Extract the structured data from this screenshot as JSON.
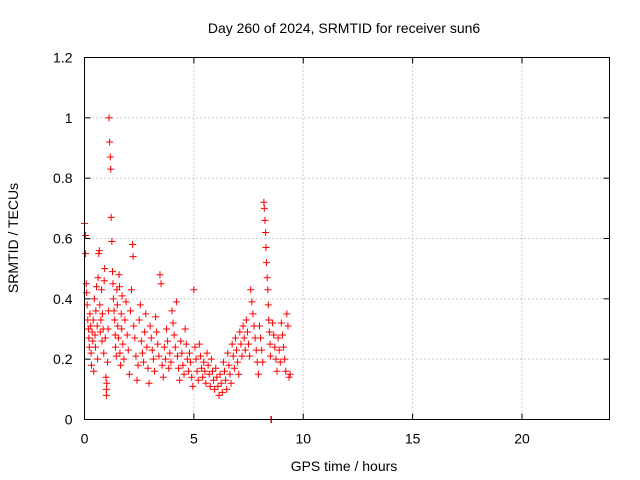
{
  "chart_data": {
    "type": "scatter",
    "title": "Day 260 of 2024, SRMTID for receiver sun6",
    "xlabel": "GPS time / hours",
    "ylabel": "SRMTID / TECUs",
    "xlim": [
      0,
      24
    ],
    "ylim": [
      0,
      1.2
    ],
    "xticks": [
      "0",
      "5",
      "10",
      "15",
      "20"
    ],
    "xtick_values": [
      0,
      5,
      10,
      15,
      20
    ],
    "yticks": [
      "0",
      "0.2",
      "0.4",
      "0.6",
      "0.8",
      "1",
      "1.2"
    ],
    "ytick_values": [
      0,
      0.2,
      0.4,
      0.6,
      0.8,
      1.0,
      1.2
    ],
    "grid": true,
    "marker": "plus",
    "marker_color": "#ff0000",
    "series": [
      {
        "points": [
          [
            0.0,
            0.65
          ],
          [
            0.05,
            0.61
          ],
          [
            0.05,
            0.55
          ],
          [
            0.08,
            0.45
          ],
          [
            0.1,
            0.42
          ],
          [
            0.12,
            0.38
          ],
          [
            0.15,
            0.33
          ],
          [
            0.18,
            0.3
          ],
          [
            0.2,
            0.27
          ],
          [
            0.22,
            0.24
          ],
          [
            0.25,
            0.35
          ],
          [
            0.28,
            0.31
          ],
          [
            0.3,
            0.22
          ],
          [
            0.32,
            0.18
          ],
          [
            0.35,
            0.29
          ],
          [
            0.38,
            0.26
          ],
          [
            0.4,
            0.33
          ],
          [
            0.42,
            0.16
          ],
          [
            0.45,
            0.4
          ],
          [
            0.48,
            0.28
          ],
          [
            0.5,
            0.24
          ],
          [
            0.52,
            0.36
          ],
          [
            0.55,
            0.44
          ],
          [
            0.58,
            0.31
          ],
          [
            0.6,
            0.2
          ],
          [
            0.62,
            0.47
          ],
          [
            0.65,
            0.55
          ],
          [
            0.68,
            0.56
          ],
          [
            0.7,
            0.38
          ],
          [
            0.72,
            0.29
          ],
          [
            0.75,
            0.33
          ],
          [
            0.78,
            0.43
          ],
          [
            0.8,
            0.26
          ],
          [
            0.82,
            0.35
          ],
          [
            0.85,
            0.3
          ],
          [
            0.88,
            0.22
          ],
          [
            0.9,
            0.46
          ],
          [
            0.92,
            0.5
          ],
          [
            0.95,
            0.27
          ],
          [
            0.98,
            0.14
          ],
          [
            1.0,
            0.1
          ],
          [
            1.0,
            0.08
          ],
          [
            1.02,
            0.12
          ],
          [
            1.05,
            0.19
          ],
          [
            1.08,
            0.3
          ],
          [
            1.1,
            0.36
          ],
          [
            1.12,
            1.0
          ],
          [
            1.15,
            0.92
          ],
          [
            1.18,
            0.87
          ],
          [
            1.2,
            0.83
          ],
          [
            1.22,
            0.67
          ],
          [
            1.25,
            0.59
          ],
          [
            1.28,
            0.49
          ],
          [
            1.3,
            0.45
          ],
          [
            1.32,
            0.4
          ],
          [
            1.35,
            0.36
          ],
          [
            1.38,
            0.33
          ],
          [
            1.4,
            0.28
          ],
          [
            1.42,
            0.24
          ],
          [
            1.45,
            0.21
          ],
          [
            1.48,
            0.43
          ],
          [
            1.5,
            0.38
          ],
          [
            1.52,
            0.31
          ],
          [
            1.55,
            0.27
          ],
          [
            1.58,
            0.48
          ],
          [
            1.6,
            0.44
          ],
          [
            1.62,
            0.22
          ],
          [
            1.65,
            0.18
          ],
          [
            1.68,
            0.35
          ],
          [
            1.7,
            0.3
          ],
          [
            1.72,
            0.41
          ],
          [
            1.75,
            0.25
          ],
          [
            1.8,
            0.2
          ],
          [
            1.85,
            0.33
          ],
          [
            1.9,
            0.39
          ],
          [
            1.95,
            0.28
          ],
          [
            2.0,
            0.23
          ],
          [
            2.05,
            0.15
          ],
          [
            2.1,
            0.36
          ],
          [
            2.15,
            0.43
          ],
          [
            2.2,
            0.58
          ],
          [
            2.22,
            0.54
          ],
          [
            2.25,
            0.31
          ],
          [
            2.3,
            0.27
          ],
          [
            2.35,
            0.21
          ],
          [
            2.4,
            0.13
          ],
          [
            2.45,
            0.18
          ],
          [
            2.5,
            0.33
          ],
          [
            2.55,
            0.38
          ],
          [
            2.6,
            0.26
          ],
          [
            2.65,
            0.22
          ],
          [
            2.7,
            0.19
          ],
          [
            2.75,
            0.29
          ],
          [
            2.8,
            0.35
          ],
          [
            2.85,
            0.24
          ],
          [
            2.9,
            0.17
          ],
          [
            2.95,
            0.12
          ],
          [
            3.0,
            0.31
          ],
          [
            3.05,
            0.27
          ],
          [
            3.1,
            0.23
          ],
          [
            3.15,
            0.2
          ],
          [
            3.2,
            0.16
          ],
          [
            3.25,
            0.34
          ],
          [
            3.3,
            0.29
          ],
          [
            3.35,
            0.25
          ],
          [
            3.4,
            0.21
          ],
          [
            3.45,
            0.48
          ],
          [
            3.5,
            0.45
          ],
          [
            3.55,
            0.18
          ],
          [
            3.6,
            0.14
          ],
          [
            3.65,
            0.24
          ],
          [
            3.7,
            0.2
          ],
          [
            3.75,
            0.3
          ],
          [
            3.8,
            0.26
          ],
          [
            3.85,
            0.17
          ],
          [
            3.9,
            0.22
          ],
          [
            3.95,
            0.19
          ],
          [
            4.0,
            0.36
          ],
          [
            4.05,
            0.32
          ],
          [
            4.1,
            0.28
          ],
          [
            4.15,
            0.24
          ],
          [
            4.2,
            0.39
          ],
          [
            4.25,
            0.21
          ],
          [
            4.3,
            0.17
          ],
          [
            4.35,
            0.13
          ],
          [
            4.4,
            0.26
          ],
          [
            4.45,
            0.22
          ],
          [
            4.5,
            0.18
          ],
          [
            4.55,
            0.15
          ],
          [
            4.6,
            0.3
          ],
          [
            4.65,
            0.25
          ],
          [
            4.7,
            0.2
          ],
          [
            4.75,
            0.16
          ],
          [
            4.8,
            0.22
          ],
          [
            4.85,
            0.19
          ],
          [
            4.9,
            0.14
          ],
          [
            4.95,
            0.11
          ],
          [
            5.0,
            0.43
          ],
          [
            5.05,
            0.24
          ],
          [
            5.1,
            0.2
          ],
          [
            5.15,
            0.16
          ],
          [
            5.2,
            0.13
          ],
          [
            5.25,
            0.25
          ],
          [
            5.3,
            0.21
          ],
          [
            5.35,
            0.17
          ],
          [
            5.4,
            0.14
          ],
          [
            5.45,
            0.19
          ],
          [
            5.5,
            0.16
          ],
          [
            5.55,
            0.12
          ],
          [
            5.6,
            0.22
          ],
          [
            5.65,
            0.18
          ],
          [
            5.7,
            0.15
          ],
          [
            5.75,
            0.11
          ],
          [
            5.8,
            0.2
          ],
          [
            5.85,
            0.16
          ],
          [
            5.9,
            0.13
          ],
          [
            5.95,
            0.1
          ],
          [
            6.0,
            0.17
          ],
          [
            6.05,
            0.14
          ],
          [
            6.1,
            0.11
          ],
          [
            6.15,
            0.08
          ],
          [
            6.2,
            0.15
          ],
          [
            6.25,
            0.12
          ],
          [
            6.3,
            0.09
          ],
          [
            6.35,
            0.19
          ],
          [
            6.4,
            0.16
          ],
          [
            6.45,
            0.13
          ],
          [
            6.5,
            0.1
          ],
          [
            6.55,
            0.22
          ],
          [
            6.6,
            0.18
          ],
          [
            6.65,
            0.15
          ],
          [
            6.7,
            0.12
          ],
          [
            6.75,
            0.25
          ],
          [
            6.8,
            0.21
          ],
          [
            6.85,
            0.17
          ],
          [
            6.9,
            0.27
          ],
          [
            6.95,
            0.23
          ],
          [
            7.0,
            0.19
          ],
          [
            7.05,
            0.15
          ],
          [
            7.1,
            0.29
          ],
          [
            7.15,
            0.25
          ],
          [
            7.2,
            0.21
          ],
          [
            7.25,
            0.31
          ],
          [
            7.3,
            0.27
          ],
          [
            7.35,
            0.23
          ],
          [
            7.4,
            0.33
          ],
          [
            7.45,
            0.29
          ],
          [
            7.5,
            0.25
          ],
          [
            7.55,
            0.21
          ],
          [
            7.6,
            0.43
          ],
          [
            7.65,
            0.39
          ],
          [
            7.7,
            0.35
          ],
          [
            7.75,
            0.31
          ],
          [
            7.8,
            0.27
          ],
          [
            7.85,
            0.23
          ],
          [
            7.9,
            0.19
          ],
          [
            7.95,
            0.15
          ],
          [
            8.0,
            0.31
          ],
          [
            8.05,
            0.27
          ],
          [
            8.1,
            0.23
          ],
          [
            8.15,
            0.19
          ],
          [
            8.2,
            0.72
          ],
          [
            8.22,
            0.7
          ],
          [
            8.25,
            0.66
          ],
          [
            8.28,
            0.62
          ],
          [
            8.3,
            0.57
          ],
          [
            8.32,
            0.52
          ],
          [
            8.35,
            0.47
          ],
          [
            8.38,
            0.43
          ],
          [
            8.4,
            0.38
          ],
          [
            8.42,
            0.33
          ],
          [
            8.45,
            0.29
          ],
          [
            8.48,
            0.25
          ],
          [
            8.5,
            0.21
          ],
          [
            8.52,
            0.0
          ],
          [
            8.55,
            0.0
          ],
          [
            8.6,
            0.32
          ],
          [
            8.65,
            0.28
          ],
          [
            8.7,
            0.24
          ],
          [
            8.75,
            0.2
          ],
          [
            8.8,
            0.16
          ],
          [
            8.85,
            0.27
          ],
          [
            8.9,
            0.23
          ],
          [
            8.95,
            0.19
          ],
          [
            9.0,
            0.32
          ],
          [
            9.05,
            0.28
          ],
          [
            9.1,
            0.24
          ],
          [
            9.15,
            0.2
          ],
          [
            9.2,
            0.16
          ],
          [
            9.25,
            0.35
          ],
          [
            9.3,
            0.31
          ],
          [
            9.35,
            0.14
          ],
          [
            9.4,
            0.15
          ]
        ]
      }
    ]
  }
}
